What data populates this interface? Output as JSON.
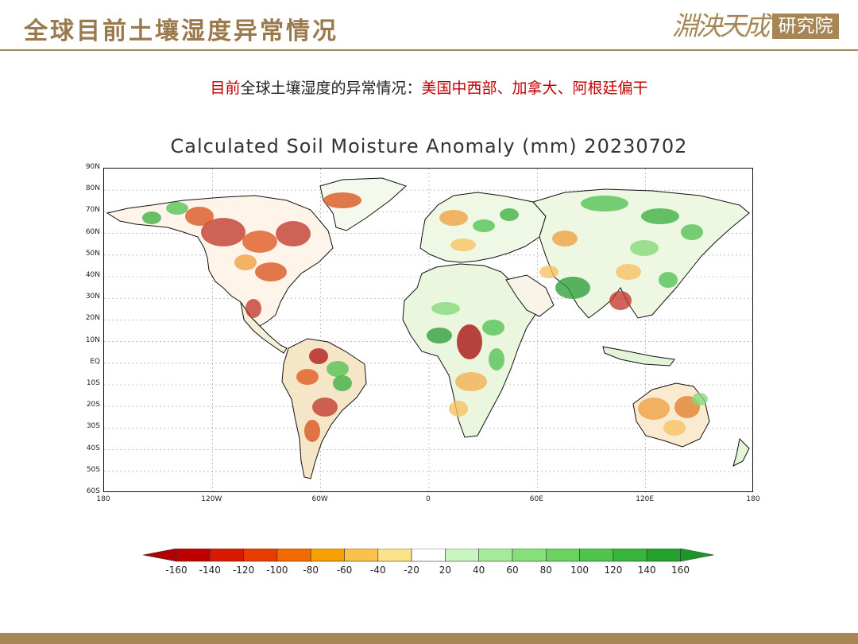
{
  "slide": {
    "title": "全球目前土壤湿度异常情况",
    "logo_script": "淵泱天成",
    "logo_box": "研究院",
    "subtitle_red_prefix": "目前",
    "subtitle_black": "全球土壤湿度的异常情况：",
    "subtitle_red_suffix": "美国中西部、加拿大、阿根廷偏干"
  },
  "map": {
    "title": "Calculated Soil Moisture Anomaly (mm) 20230702",
    "lat_labels": [
      "90N",
      "80N",
      "70N",
      "60N",
      "50N",
      "40N",
      "30N",
      "20N",
      "10N",
      "EQ",
      "10S",
      "20S",
      "30S",
      "40S",
      "50S",
      "60S"
    ],
    "lon_labels": [
      "180",
      "120W",
      "60W",
      "0",
      "60E",
      "120E",
      "180"
    ],
    "lat_range": [
      -60,
      90
    ],
    "lon_range": [
      -180,
      180
    ]
  },
  "colorbar": {
    "ticks": [
      "-160",
      "-140",
      "-120",
      "-100",
      "-80",
      "-60",
      "-40",
      "-20",
      "20",
      "40",
      "60",
      "80",
      "100",
      "120",
      "140",
      "160"
    ],
    "colors": [
      "#c00000",
      "#d91a00",
      "#e83c00",
      "#f26a00",
      "#f7a000",
      "#fac24a",
      "#fde28a",
      "#ffffff",
      "#c8f5c0",
      "#a5eb9a",
      "#86e07a",
      "#6ad35e",
      "#4ec44a",
      "#37b53a",
      "#25a22e"
    ],
    "low_color": "#b00000",
    "high_color": "#1a9626"
  },
  "colors": {
    "accent": "#a68655",
    "dry": "#c0392b",
    "wet": "#2e9e3a"
  }
}
